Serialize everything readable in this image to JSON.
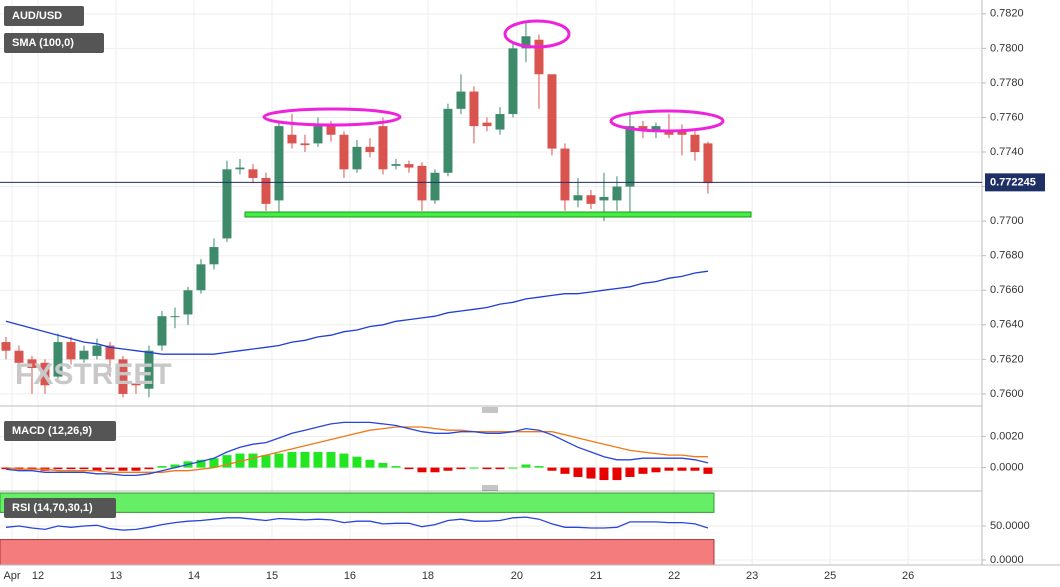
{
  "chart_data": [
    {
      "type": "candlestick",
      "title": "AUD/USD",
      "watermark": "FXSTREET",
      "open": [
        0.763,
        0.7625,
        0.762,
        0.7618,
        0.761,
        0.763,
        0.762,
        0.7622,
        0.7628,
        0.762,
        0.7606,
        0.7603,
        0.7628,
        0.7645,
        0.7646,
        0.766,
        0.7675,
        0.769,
        0.773,
        0.773,
        0.7725,
        0.7712,
        0.775,
        0.7745,
        0.7745,
        0.7755,
        0.775,
        0.773,
        0.7743,
        0.7755,
        0.7732,
        0.7733,
        0.7732,
        0.7712,
        0.7728,
        0.7765,
        0.7775,
        0.7757,
        0.7753,
        0.7762,
        0.78,
        0.7805,
        0.7785,
        0.7742,
        0.7712,
        0.7715,
        0.7712,
        0.7712,
        0.772,
        0.7755,
        0.7752,
        0.7752,
        0.7752,
        0.775,
        0.7745
      ],
      "high": [
        0.7633,
        0.7628,
        0.7622,
        0.762,
        0.7635,
        0.7633,
        0.7628,
        0.7632,
        0.763,
        0.7622,
        0.761,
        0.7628,
        0.7648,
        0.765,
        0.7662,
        0.7678,
        0.769,
        0.7735,
        0.7736,
        0.7733,
        0.7728,
        0.7758,
        0.7762,
        0.775,
        0.776,
        0.7758,
        0.7752,
        0.7747,
        0.7748,
        0.776,
        0.7736,
        0.7735,
        0.7734,
        0.773,
        0.7768,
        0.7785,
        0.7778,
        0.776,
        0.7766,
        0.7803,
        0.7815,
        0.7808,
        0.7785,
        0.7745,
        0.7725,
        0.7718,
        0.7728,
        0.7726,
        0.7762,
        0.7758,
        0.7757,
        0.7762,
        0.7756,
        0.7752,
        0.7746
      ],
      "low": [
        0.762,
        0.7612,
        0.76,
        0.76,
        0.7608,
        0.7617,
        0.7618,
        0.762,
        0.761,
        0.7598,
        0.76,
        0.7598,
        0.7625,
        0.7638,
        0.764,
        0.7658,
        0.7672,
        0.7688,
        0.7727,
        0.7722,
        0.7706,
        0.7705,
        0.7742,
        0.774,
        0.7743,
        0.7746,
        0.7725,
        0.7728,
        0.7737,
        0.7727,
        0.773,
        0.7728,
        0.7706,
        0.771,
        0.7726,
        0.7762,
        0.7745,
        0.7752,
        0.775,
        0.776,
        0.7792,
        0.7765,
        0.7738,
        0.7706,
        0.7708,
        0.7707,
        0.77,
        0.7706,
        0.7705,
        0.7748,
        0.7748,
        0.7748,
        0.7738,
        0.7735,
        0.7716
      ],
      "close": [
        0.7625,
        0.7618,
        0.7615,
        0.7605,
        0.763,
        0.762,
        0.7625,
        0.7628,
        0.762,
        0.76,
        0.7605,
        0.7625,
        0.7645,
        0.7645,
        0.766,
        0.7675,
        0.7685,
        0.773,
        0.7731,
        0.7725,
        0.771,
        0.7755,
        0.7745,
        0.7744,
        0.7755,
        0.775,
        0.773,
        0.7743,
        0.774,
        0.773,
        0.7733,
        0.7731,
        0.7712,
        0.7728,
        0.7765,
        0.7775,
        0.7755,
        0.7755,
        0.7762,
        0.78,
        0.7807,
        0.7785,
        0.7742,
        0.7712,
        0.7715,
        0.771,
        0.7714,
        0.772,
        0.7755,
        0.7753,
        0.7755,
        0.775,
        0.775,
        0.774,
        0.7722
      ],
      "up_color": "#3e8b6c",
      "down_color": "#d9534f",
      "series": [
        {
          "name": "SMA (100,0)",
          "color": "#1f3fd4",
          "values": [
            0.7642,
            0.764,
            0.7638,
            0.7636,
            0.7634,
            0.7632,
            0.763,
            0.7629,
            0.7627,
            0.7626,
            0.7625,
            0.7624,
            0.7623,
            0.7623,
            0.7623,
            0.7623,
            0.7623,
            0.7624,
            0.7625,
            0.7626,
            0.7627,
            0.7628,
            0.763,
            0.7631,
            0.7633,
            0.7634,
            0.7636,
            0.7637,
            0.7639,
            0.764,
            0.7642,
            0.7643,
            0.7644,
            0.7645,
            0.7647,
            0.7648,
            0.7649,
            0.765,
            0.7652,
            0.7653,
            0.7655,
            0.7656,
            0.7657,
            0.7658,
            0.7658,
            0.7659,
            0.766,
            0.7661,
            0.7662,
            0.7664,
            0.7665,
            0.7667,
            0.7668,
            0.767,
            0.7671
          ]
        }
      ],
      "last_price": 0.772245,
      "xlim": [
        -0.46,
        75.08
      ],
      "xticks": [
        {
          "value": 0.46,
          "label": "Apr"
        },
        {
          "value": 2.46,
          "label": "12"
        },
        {
          "value": 8.46,
          "label": "13"
        },
        {
          "value": 14.46,
          "label": "14"
        },
        {
          "value": 20.46,
          "label": "15"
        },
        {
          "value": 26.46,
          "label": "16"
        },
        {
          "value": 32.46,
          "label": "18"
        },
        {
          "value": 39.3,
          "label": "20"
        },
        {
          "value": 45.4,
          "label": "21"
        },
        {
          "value": 51.4,
          "label": "22"
        },
        {
          "value": 57.4,
          "label": "23"
        },
        {
          "value": 63.4,
          "label": "25"
        },
        {
          "value": 69.4,
          "label": "26"
        }
      ],
      "ylim": [
        0.7593,
        0.7828
      ],
      "yticks": [
        {
          "value": 0.76,
          "label": "0.7600"
        },
        {
          "value": 0.762,
          "label": "0.7620"
        },
        {
          "value": 0.764,
          "label": "0.7640"
        },
        {
          "value": 0.766,
          "label": "0.7660"
        },
        {
          "value": 0.768,
          "label": "0.7680"
        },
        {
          "value": 0.77,
          "label": "0.7700"
        },
        {
          "value": 0.772,
          "label": "0.7720"
        },
        {
          "value": 0.774,
          "label": "0.7740"
        },
        {
          "value": 0.776,
          "label": "0.7760"
        },
        {
          "value": 0.778,
          "label": "0.7780"
        },
        {
          "value": 0.78,
          "label": "0.7800"
        },
        {
          "value": 0.782,
          "label": "0.7820"
        }
      ],
      "grid": true
    },
    {
      "type": "macd",
      "title": "MACD (12,26,9)",
      "macd": [
        -0.0001,
        -0.0002,
        -0.0002,
        -0.0003,
        -0.0003,
        -0.0003,
        -0.0003,
        -0.0004,
        -0.0004,
        -0.0005,
        -0.0005,
        -0.0004,
        -0.0002,
        0.0,
        0.0002,
        0.0004,
        0.0006,
        0.001,
        0.0013,
        0.0015,
        0.0016,
        0.0019,
        0.0022,
        0.0024,
        0.0026,
        0.0028,
        0.0029,
        0.0029,
        0.0029,
        0.0028,
        0.0027,
        0.0025,
        0.0023,
        0.0022,
        0.0022,
        0.0023,
        0.0023,
        0.0022,
        0.0022,
        0.0023,
        0.0025,
        0.0024,
        0.0021,
        0.0017,
        0.0013,
        0.001,
        0.0007,
        0.0005,
        0.0005,
        0.0006,
        0.0006,
        0.0006,
        0.0006,
        0.0005,
        0.0003
      ],
      "signal": [
        0.0,
        -0.0001,
        -0.0001,
        -0.0001,
        -0.0002,
        -0.0002,
        -0.0002,
        -0.0002,
        -0.0003,
        -0.0003,
        -0.0003,
        -0.0003,
        -0.0003,
        -0.0002,
        -0.0002,
        -0.0001,
        0.0,
        0.0002,
        0.0004,
        0.0006,
        0.0008,
        0.001,
        0.0012,
        0.0014,
        0.0016,
        0.0018,
        0.002,
        0.0022,
        0.0024,
        0.0025,
        0.0026,
        0.0026,
        0.0026,
        0.0025,
        0.0024,
        0.0024,
        0.0023,
        0.0023,
        0.0023,
        0.0023,
        0.0023,
        0.0023,
        0.0023,
        0.0021,
        0.0019,
        0.0017,
        0.0015,
        0.0013,
        0.0011,
        0.001,
        0.0009,
        0.0008,
        0.0008,
        0.0007,
        0.0007
      ],
      "histogram": [
        -0.0001,
        -0.0001,
        -0.0001,
        -0.0002,
        -0.0001,
        -0.0001,
        -0.0001,
        -0.0002,
        -0.0001,
        -0.0002,
        -0.0002,
        -0.0001,
        0.0001,
        0.0002,
        0.0004,
        0.0005,
        0.0006,
        0.0008,
        0.0009,
        0.0009,
        0.0008,
        0.0009,
        0.001,
        0.001,
        0.001,
        0.001,
        0.0009,
        0.0007,
        0.0005,
        0.0003,
        0.0001,
        -0.0001,
        -0.0003,
        -0.0003,
        -0.0002,
        -0.0001,
        0.0,
        -0.0001,
        -0.0001,
        0.0,
        0.0002,
        0.0001,
        -0.0002,
        -0.0004,
        -0.0006,
        -0.0007,
        -0.0008,
        -0.0008,
        -0.0006,
        -0.0004,
        -0.0003,
        -0.0002,
        -0.0002,
        -0.0002,
        -0.0004
      ],
      "macd_color": "#2846d8",
      "signal_color": "#f07818",
      "positive_color": "#22e622",
      "negative_color": "#e60000",
      "ylim": [
        -0.0015,
        0.0035
      ],
      "yticks": [
        {
          "value": 0,
          "label": "0.0000"
        },
        {
          "value": 0.002,
          "label": "0.0020"
        }
      ]
    },
    {
      "type": "rsi",
      "title": "RSI (14,70,30,1)",
      "values": [
        48,
        50,
        47,
        45,
        50,
        48,
        50,
        51,
        46,
        44,
        45,
        48,
        52,
        55,
        57,
        58,
        60,
        62,
        62,
        60,
        58,
        61,
        60,
        59,
        60,
        59,
        55,
        57,
        57,
        53,
        54,
        54,
        49,
        52,
        58,
        60,
        57,
        57,
        58,
        62,
        63,
        60,
        53,
        48,
        48,
        47,
        47,
        48,
        56,
        56,
        56,
        55,
        55,
        53,
        47
      ],
      "color": "#2846d8",
      "overbought": 70,
      "oversold": 30,
      "overbought_color": "#66ee66",
      "oversold_color": "#f47c7c",
      "ylim": [
        -7.4,
        100
      ],
      "yticks": [
        {
          "value": 0,
          "label": "0.0000"
        },
        {
          "value": 50,
          "label": "50.0000"
        }
      ]
    }
  ]
}
